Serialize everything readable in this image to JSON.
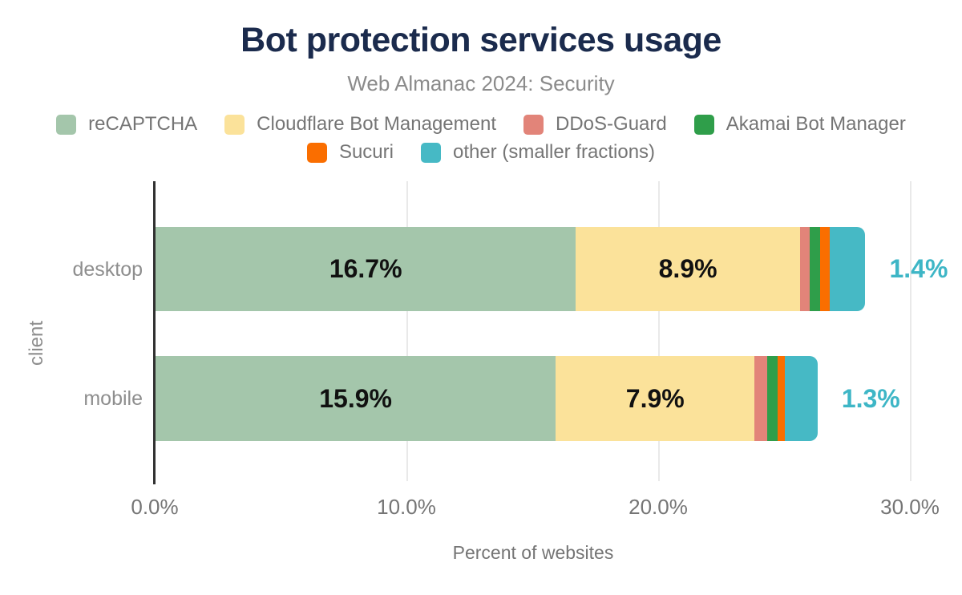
{
  "chart_data": {
    "type": "bar",
    "variant": "horizontal-stacked",
    "title": "Bot protection services usage",
    "subtitle": "Web Almanac 2024: Security",
    "categories": [
      "desktop",
      "mobile"
    ],
    "series": [
      {
        "name": "reCAPTCHA",
        "color": "#a4c6ab",
        "values": [
          16.7,
          15.9
        ],
        "labels": [
          "16.7%",
          "15.9%"
        ],
        "label_placement": "inside"
      },
      {
        "name": "Cloudflare Bot Management",
        "color": "#fbe29a",
        "values": [
          8.9,
          7.9
        ],
        "labels": [
          "8.9%",
          "7.9%"
        ],
        "label_placement": "inside"
      },
      {
        "name": "DDoS-Guard",
        "color": "#e28479",
        "values": [
          0.4,
          0.5
        ]
      },
      {
        "name": "Akamai Bot Manager",
        "color": "#2f9e4a",
        "values": [
          0.4,
          0.4
        ]
      },
      {
        "name": "Sucuri",
        "color": "#fa6e00",
        "values": [
          0.4,
          0.3
        ]
      },
      {
        "name": "other (smaller fractions)",
        "color": "#46b9c5",
        "values": [
          1.4,
          1.3
        ],
        "labels": [
          "1.4%",
          "1.3%"
        ],
        "label_placement": "outside"
      }
    ],
    "legend_rows": [
      [
        "reCAPTCHA",
        "Cloudflare Bot Management",
        "DDoS-Guard",
        "Akamai Bot Manager"
      ],
      [
        "Sucuri",
        "other (smaller fractions)"
      ]
    ],
    "xlabel": "Percent of websites",
    "ylabel": "client",
    "x_ticks": [
      {
        "label": "0.0%",
        "value": 0
      },
      {
        "label": "10.0%",
        "value": 10
      },
      {
        "label": "20.0%",
        "value": 20
      },
      {
        "label": "30.0%",
        "value": 30
      }
    ],
    "xlim": [
      0,
      30
    ],
    "grid": "vertical",
    "legend_position": "top",
    "colors": {
      "title": "#1b2b4d",
      "subtitle": "#8b8b8b",
      "inside_label": "#111111",
      "outside_label": "#3eb6c6",
      "axis_text": "#757575",
      "category_text": "#8e8e8e"
    }
  }
}
